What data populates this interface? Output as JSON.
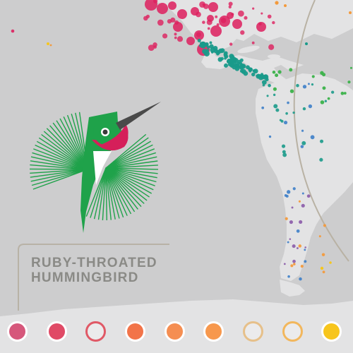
{
  "species": {
    "line1": "RUBY-THROATED",
    "line2": "HUMMINGBIRD"
  },
  "colors": {
    "background": "#cdcdce",
    "land": "#e3e3e4",
    "bracket_line": "#b8b2a6",
    "orbit_line": "#b9b2a4",
    "bird_green": "#1fa24a",
    "bird_magenta": "#d51f5a",
    "bird_beak": "#4a4a4a",
    "title_text": "#8a8a86"
  },
  "map_points": {
    "magenta": "#dd1f5e",
    "teal": "#199a8a",
    "green": "#3bb24a",
    "blue": "#3d7ec8",
    "purple": "#8a5aa8",
    "orange": "#f39a3c",
    "yellow": "#f5c61e"
  },
  "legend": [
    {
      "fill": "#d6577b",
      "ring": "#ffffff"
    },
    {
      "fill": "#e04a66",
      "ring": "#ffffff"
    },
    {
      "fill": "#ebebec",
      "ring": "#e05966"
    },
    {
      "fill": "#f27449",
      "ring": "#ffffff"
    },
    {
      "fill": "#f58e52",
      "ring": "#ffffff"
    },
    {
      "fill": "#f7984d",
      "ring": "#ffffff"
    },
    {
      "fill": "#ebebec",
      "ring": "#e6c08a"
    },
    {
      "fill": "#ebebec",
      "ring": "#f2b75d"
    },
    {
      "fill": "#f7c51c",
      "ring": "#ffffff"
    }
  ]
}
